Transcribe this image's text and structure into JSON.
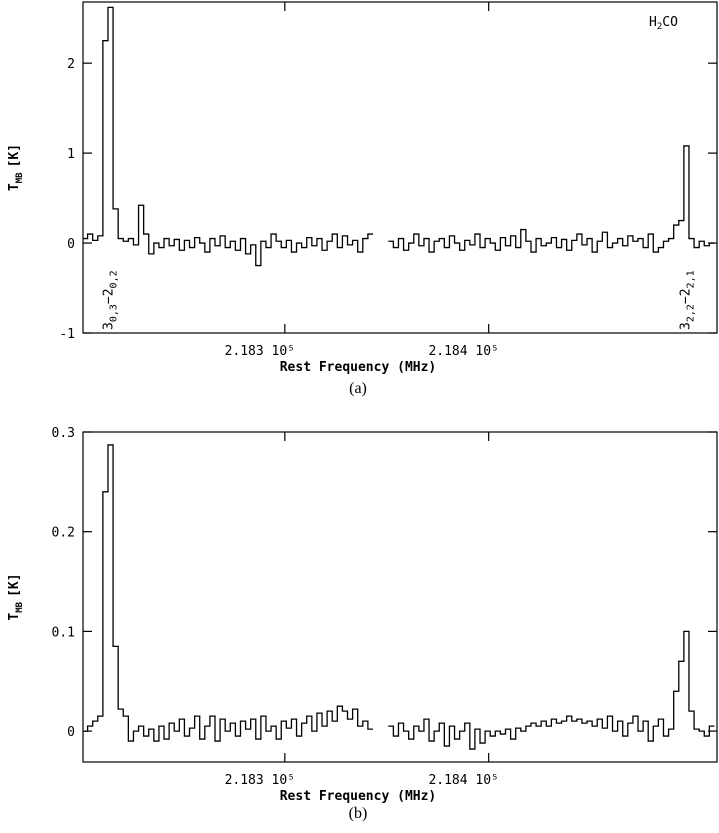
{
  "chart_data": [
    {
      "type": "line",
      "step": true,
      "xlabel": "Rest Frequency (MHz)",
      "ylabel": [
        "T",
        "MB",
        "[K]"
      ],
      "caption": "(a)",
      "annotation": [
        "H",
        "2",
        "CO"
      ],
      "line_labels": [
        {
          "x": 218213,
          "parts": [
            "3",
            "0,3",
            "−2",
            "0,2"
          ]
        },
        {
          "x": 218496,
          "parts": [
            "3",
            "2,2",
            "−2",
            "2,1"
          ]
        }
      ],
      "xlim": [
        218201,
        218512
      ],
      "ylim": [
        -1,
        2.68
      ],
      "xticks": [
        {
          "value": 218300,
          "label": "2.183 10⁵"
        },
        {
          "value": 218400,
          "label": "2.184 10⁵"
        }
      ],
      "yticks": [
        -1,
        0,
        1,
        2
      ],
      "x": [
        218202,
        218204.5,
        218207,
        218209.5,
        218212,
        218214.5,
        218217,
        218219.5,
        218222,
        218224.5,
        218227,
        218229.5,
        218232,
        218234.5,
        218237,
        218239.5,
        218242,
        218244.5,
        218247,
        218249.5,
        218252,
        218254.5,
        218257,
        218259.5,
        218262,
        218264.5,
        218267,
        218269.5,
        218272,
        218274.5,
        218277,
        218279.5,
        218282,
        218284.5,
        218287,
        218289.5,
        218292,
        218294.5,
        218297,
        218299.5,
        218302,
        218304.5,
        218307,
        218309.5,
        218312,
        218314.5,
        218317,
        218319.5,
        218322,
        218324.5,
        218327,
        218329.5,
        218332,
        218334.5,
        218337,
        218339.5,
        218342,
        218344.5,
        218347,
        218349.5,
        218352,
        218354.5,
        218357,
        218359.5,
        218362,
        218364.5,
        218367,
        218369.5,
        218372,
        218374.5,
        218377,
        218379.5,
        218382,
        218384.5,
        218387,
        218389.5,
        218392,
        218394.5,
        218397,
        218399.5,
        218402,
        218404.5,
        218407,
        218409.5,
        218412,
        218414.5,
        218417,
        218419.5,
        218422,
        218424.5,
        218427,
        218429.5,
        218432,
        218434.5,
        218437,
        218439.5,
        218442,
        218444.5,
        218447,
        218449.5,
        218452,
        218454.5,
        218457,
        218459.5,
        218462,
        218464.5,
        218467,
        218469.5,
        218472,
        218474.5,
        218477,
        218479.5,
        218482,
        218484.5,
        218487,
        218489.5,
        218492,
        218494.5,
        218497,
        218499.5,
        218502,
        218504.5,
        218507,
        218509.5
      ],
      "series": [
        {
          "color": "#000000",
          "values": [
            0.05,
            0.1,
            0.03,
            0.08,
            2.25,
            2.62,
            0.38,
            0.05,
            0.02,
            0.05,
            -0.02,
            0.42,
            0.1,
            -0.12,
            0.0,
            -0.05,
            0.05,
            -0.03,
            0.04,
            -0.08,
            0.03,
            -0.05,
            0.06,
            0.0,
            -0.1,
            0.05,
            -0.03,
            0.08,
            -0.05,
            0.02,
            -0.08,
            0.05,
            -0.12,
            -0.02,
            -0.25,
            0.02,
            -0.05,
            0.1,
            0.02,
            -0.05,
            0.03,
            -0.1,
            0.0,
            -0.05,
            0.06,
            -0.03,
            0.05,
            -0.08,
            0.02,
            0.1,
            -0.05,
            0.08,
            -0.02,
            0.03,
            -0.1,
            0.05,
            0.1,
            null,
            null,
            null,
            0.02,
            -0.05,
            0.05,
            -0.08,
            0.0,
            0.1,
            -0.03,
            0.05,
            -0.1,
            0.02,
            0.05,
            -0.05,
            0.08,
            0.0,
            -0.08,
            0.03,
            -0.02,
            0.1,
            -0.05,
            0.05,
            0.0,
            -0.08,
            0.06,
            -0.03,
            0.08,
            -0.05,
            0.15,
            0.02,
            -0.1,
            0.05,
            -0.03,
            0.0,
            0.06,
            -0.05,
            0.04,
            -0.08,
            0.03,
            0.1,
            -0.02,
            0.05,
            -0.1,
            0.02,
            0.12,
            -0.05,
            0.0,
            0.05,
            -0.03,
            0.08,
            0.02,
            0.05,
            -0.05,
            0.1,
            -0.1,
            -0.05,
            0.02,
            0.05,
            0.2,
            0.25,
            1.08,
            0.05,
            -0.05,
            0.02,
            -0.03,
            0.0
          ]
        }
      ]
    },
    {
      "type": "line",
      "step": true,
      "xlabel": "Rest Frequency (MHz)",
      "ylabel": [
        "T",
        "MB",
        "[K]"
      ],
      "caption": "(b)",
      "xlim": [
        218201,
        218512
      ],
      "ylim": [
        -0.031,
        0.3
      ],
      "xticks": [
        {
          "value": 218300,
          "label": "2.183 10⁵"
        },
        {
          "value": 218400,
          "label": "2.184 10⁵"
        }
      ],
      "yticks": [
        0,
        0.1,
        0.2,
        0.3
      ],
      "x": [
        218202,
        218204.5,
        218207,
        218209.5,
        218212,
        218214.5,
        218217,
        218219.5,
        218222,
        218224.5,
        218227,
        218229.5,
        218232,
        218234.5,
        218237,
        218239.5,
        218242,
        218244.5,
        218247,
        218249.5,
        218252,
        218254.5,
        218257,
        218259.5,
        218262,
        218264.5,
        218267,
        218269.5,
        218272,
        218274.5,
        218277,
        218279.5,
        218282,
        218284.5,
        218287,
        218289.5,
        218292,
        218294.5,
        218297,
        218299.5,
        218302,
        218304.5,
        218307,
        218309.5,
        218312,
        218314.5,
        218317,
        218319.5,
        218322,
        218324.5,
        218327,
        218329.5,
        218332,
        218334.5,
        218337,
        218339.5,
        218342,
        218344.5,
        218347,
        218349.5,
        218352,
        218354.5,
        218357,
        218359.5,
        218362,
        218364.5,
        218367,
        218369.5,
        218372,
        218374.5,
        218377,
        218379.5,
        218382,
        218384.5,
        218387,
        218389.5,
        218392,
        218394.5,
        218397,
        218399.5,
        218402,
        218404.5,
        218407,
        218409.5,
        218412,
        218414.5,
        218417,
        218419.5,
        218422,
        218424.5,
        218427,
        218429.5,
        218432,
        218434.5,
        218437,
        218439.5,
        218442,
        218444.5,
        218447,
        218449.5,
        218452,
        218454.5,
        218457,
        218459.5,
        218462,
        218464.5,
        218467,
        218469.5,
        218472,
        218474.5,
        218477,
        218479.5,
        218482,
        218484.5,
        218487,
        218489.5,
        218492,
        218494.5,
        218497,
        218499.5,
        218502,
        218504.5,
        218507,
        218509.5
      ],
      "series": [
        {
          "color": "#000000",
          "values": [
            0.0,
            0.005,
            0.01,
            0.015,
            0.24,
            0.287,
            0.085,
            0.022,
            0.015,
            -0.01,
            0.0,
            0.005,
            -0.005,
            0.002,
            -0.01,
            0.005,
            -0.008,
            0.008,
            0.0,
            0.012,
            -0.005,
            0.003,
            0.015,
            -0.008,
            0.005,
            0.015,
            -0.01,
            0.012,
            0.0,
            0.008,
            -0.005,
            0.01,
            0.002,
            0.012,
            -0.008,
            0.015,
            0.0,
            0.005,
            -0.008,
            0.01,
            0.003,
            0.012,
            -0.005,
            0.008,
            0.015,
            0.0,
            0.018,
            0.005,
            0.02,
            0.01,
            0.025,
            0.02,
            0.012,
            0.022,
            0.005,
            0.01,
            0.002,
            null,
            null,
            null,
            0.005,
            -0.005,
            0.008,
            0.0,
            -0.008,
            0.005,
            0.0,
            0.012,
            -0.01,
            0.0,
            0.008,
            -0.015,
            0.005,
            -0.008,
            0.0,
            0.008,
            -0.018,
            0.002,
            -0.012,
            0.0,
            -0.005,
            0.0,
            -0.003,
            0.002,
            -0.008,
            0.003,
            0.0,
            0.005,
            0.008,
            0.005,
            0.01,
            0.005,
            0.012,
            0.008,
            0.01,
            0.015,
            0.01,
            0.012,
            0.008,
            0.01,
            0.005,
            0.012,
            0.003,
            0.015,
            0.0,
            0.01,
            -0.005,
            0.008,
            0.015,
            0.0,
            0.01,
            -0.01,
            0.005,
            0.012,
            -0.005,
            0.002,
            0.04,
            0.07,
            0.1,
            0.02,
            0.002,
            0.0,
            -0.005,
            0.005
          ]
        }
      ]
    }
  ]
}
